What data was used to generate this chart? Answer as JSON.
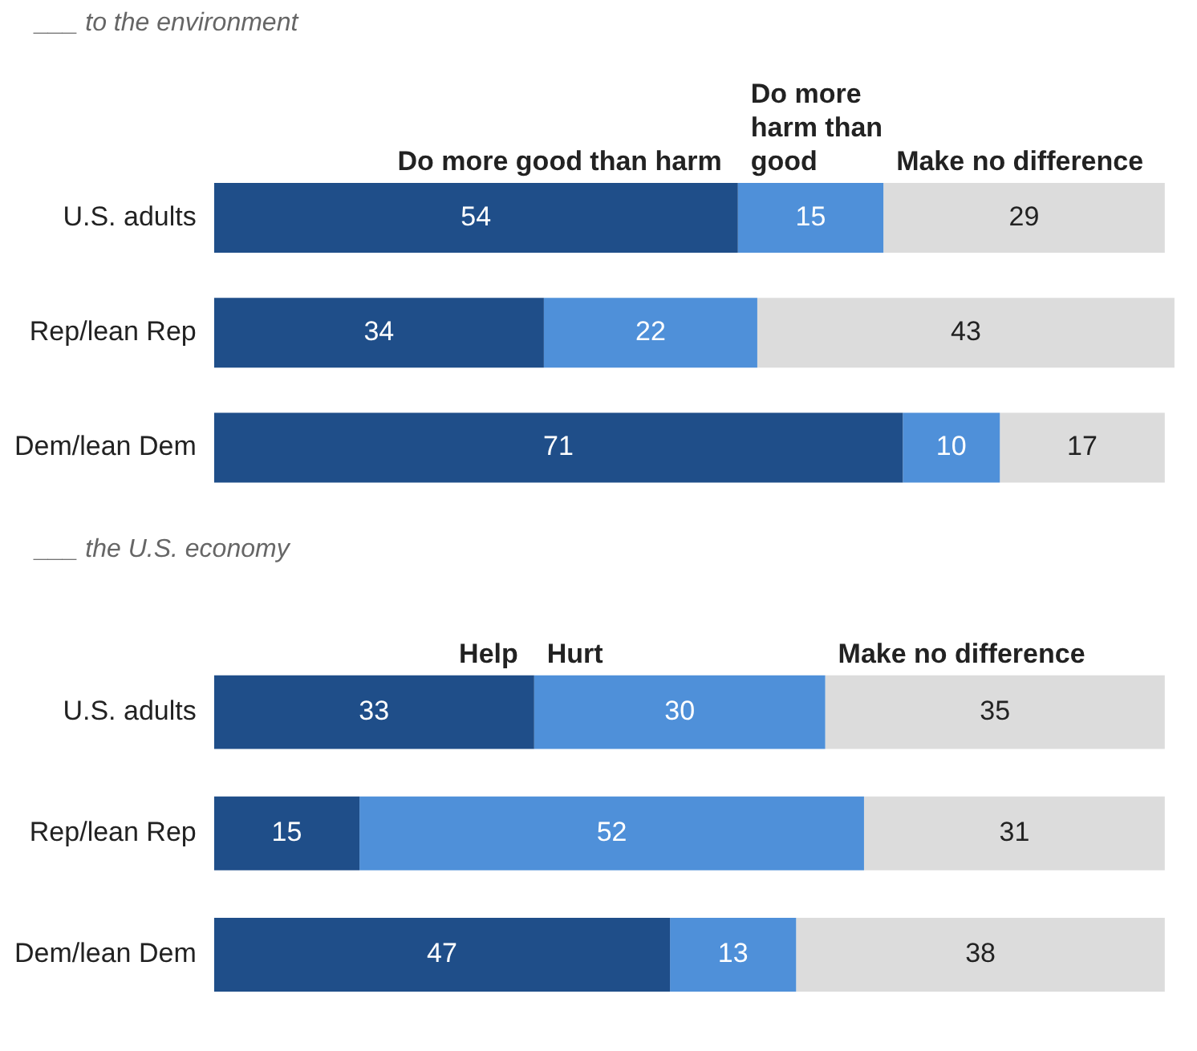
{
  "chart_data": [
    {
      "type": "bar",
      "orientation": "horizontal",
      "stacked": true,
      "title": "___ to the environment",
      "categories": [
        "U.S. adults",
        "Rep/lean Rep",
        "Dem/lean Dem"
      ],
      "series": [
        {
          "name": "Do more good than harm",
          "color": "#1f4e89",
          "values": [
            54,
            34,
            71
          ]
        },
        {
          "name": "Do more harm than good",
          "color": "#4f90d9",
          "values": [
            15,
            22,
            10
          ]
        },
        {
          "name": "Make no difference",
          "color": "#dcdcdc",
          "values": [
            29,
            43,
            17
          ]
        }
      ],
      "tick_labels": "y",
      "data_labels": true,
      "legend": "top"
    },
    {
      "type": "bar",
      "orientation": "horizontal",
      "stacked": true,
      "title": "___ the U.S. economy",
      "categories": [
        "U.S. adults",
        "Rep/lean Rep",
        "Dem/lean Dem"
      ],
      "series": [
        {
          "name": "Help",
          "color": "#1f4e89",
          "values": [
            33,
            15,
            47
          ]
        },
        {
          "name": "Hurt",
          "color": "#4f90d9",
          "values": [
            30,
            52,
            13
          ]
        },
        {
          "name": "Make no difference",
          "color": "#dcdcdc",
          "values": [
            35,
            31,
            38
          ]
        }
      ],
      "tick_labels": "y",
      "data_labels": true,
      "legend": "top"
    }
  ]
}
